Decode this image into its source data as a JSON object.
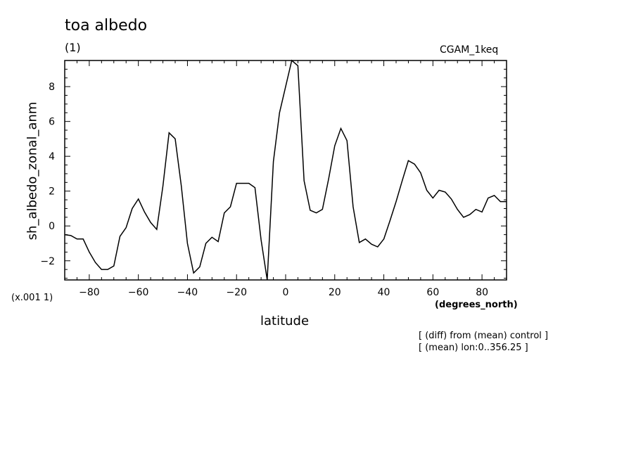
{
  "chart_data": {
    "type": "line",
    "title": "toa albedo",
    "subtitle": "(1)",
    "run_label": "CGAM_1keq",
    "ylabel": "sh_albedo_zonal_anm",
    "xlabel": "latitude",
    "x_units": "(degrees_north)",
    "y_scale_note": "(x.001 1)",
    "notes": [
      "[ (diff) from (mean) control ]",
      "[ (mean) lon:0..356.25 ]"
    ],
    "xlim": [
      -90,
      90
    ],
    "ylim": [
      -3.1,
      9.5
    ],
    "x_ticks": [
      -80,
      -60,
      -40,
      -20,
      0,
      20,
      40,
      60,
      80
    ],
    "x_tick_labels": [
      "−80",
      "−60",
      "−40",
      "−20",
      "0",
      "20",
      "40",
      "60",
      "80"
    ],
    "y_ticks": [
      -2,
      0,
      2,
      4,
      6,
      8
    ],
    "y_tick_labels": [
      "−2",
      "0",
      "2",
      "4",
      "6",
      "8"
    ],
    "grid": false,
    "line_color": "#000000",
    "series": [
      {
        "x": [
          -90.0,
          -87.5,
          -85.0,
          -82.5,
          -80.0,
          -77.5,
          -75.0,
          -72.5,
          -70.0,
          -67.5,
          -65.0,
          -62.5,
          -60.0,
          -57.5,
          -55.0,
          -52.5,
          -50.0,
          -47.5,
          -45.0,
          -42.5,
          -40.0,
          -37.5,
          -35.0,
          -32.5,
          -30.0,
          -27.5,
          -25.0,
          -22.5,
          -20.0,
          -17.5,
          -15.0,
          -12.5,
          -10.0,
          -7.5,
          -5.0,
          -2.5,
          0.0,
          2.5,
          5.0,
          7.5,
          10.0,
          12.5,
          15.0,
          17.5,
          20.0,
          22.5,
          25.0,
          27.5,
          30.0,
          32.5,
          35.0,
          37.5,
          40.0,
          42.5,
          45.0,
          47.5,
          50.0,
          52.5,
          55.0,
          57.5,
          60.0,
          62.5,
          65.0,
          67.5,
          70.0,
          72.5,
          75.0,
          77.5,
          80.0,
          82.5,
          85.0,
          87.5,
          90.0
        ],
        "y": [
          -0.5,
          -0.55,
          -0.75,
          -0.75,
          -1.5,
          -2.1,
          -2.5,
          -2.5,
          -2.3,
          -0.6,
          -0.1,
          1.0,
          1.55,
          0.8,
          0.2,
          -0.2,
          2.3,
          5.35,
          5.0,
          2.3,
          -1.0,
          -2.7,
          -2.35,
          -1.0,
          -0.65,
          -0.9,
          0.75,
          1.1,
          2.45,
          2.45,
          2.45,
          2.2,
          -0.8,
          -3.1,
          3.7,
          6.5,
          8.0,
          9.5,
          9.2,
          2.6,
          0.9,
          0.75,
          0.95,
          2.7,
          4.6,
          5.6,
          4.9,
          1.1,
          -0.95,
          -0.75,
          -1.05,
          -1.2,
          -0.75,
          0.3,
          1.4,
          2.6,
          3.75,
          3.55,
          3.05,
          2.05,
          1.6,
          2.05,
          1.95,
          1.55,
          0.95,
          0.5,
          0.65,
          0.95,
          0.8,
          1.6,
          1.75,
          1.4,
          1.4
        ]
      }
    ]
  }
}
